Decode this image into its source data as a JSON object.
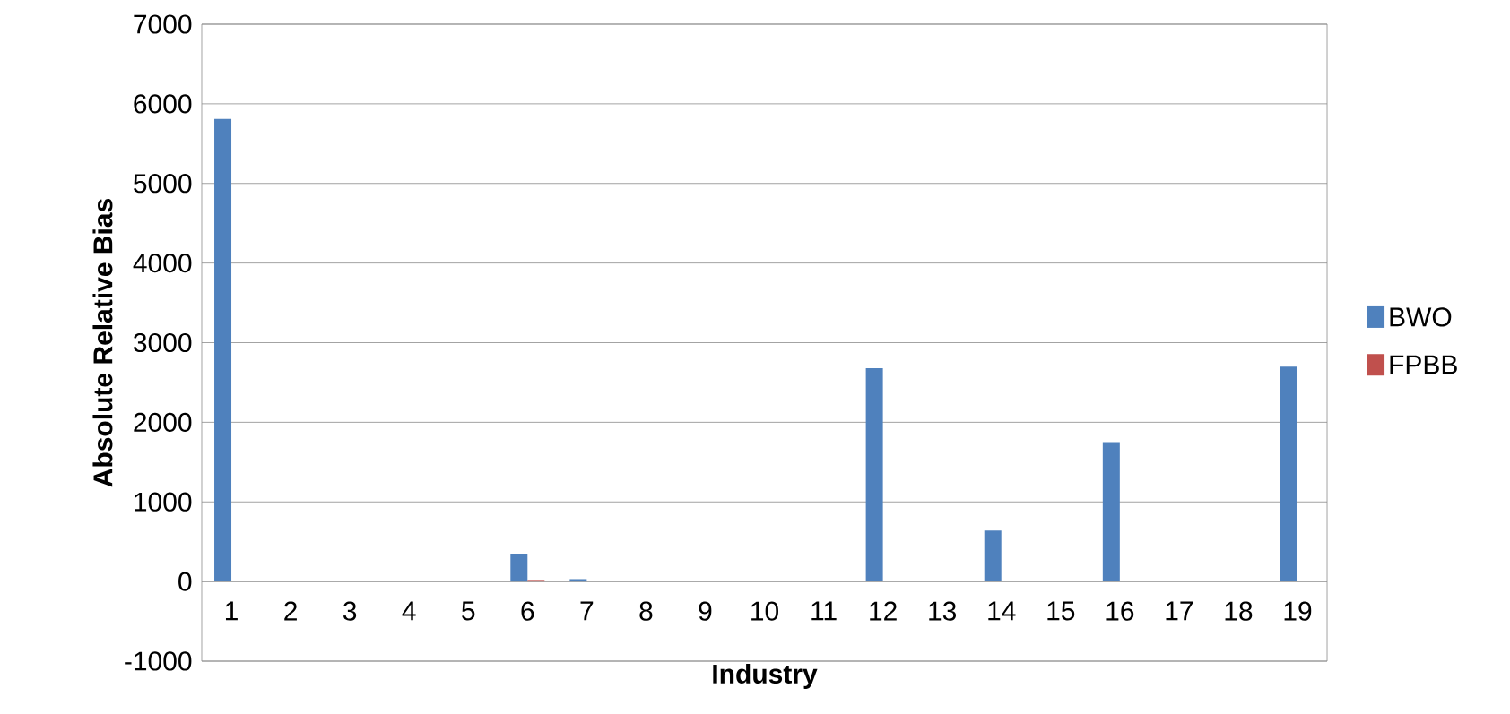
{
  "chart_data": {
    "type": "bar",
    "xlabel": "Industry",
    "ylabel": "Absolute Relative Bias",
    "categories": [
      "1",
      "2",
      "3",
      "4",
      "5",
      "6",
      "7",
      "8",
      "9",
      "10",
      "11",
      "12",
      "13",
      "14",
      "15",
      "16",
      "17",
      "18",
      "19"
    ],
    "series": [
      {
        "name": "BWO",
        "color": "#4f81bd",
        "values": [
          5810,
          0,
          0,
          0,
          0,
          350,
          30,
          0,
          0,
          0,
          0,
          2680,
          0,
          640,
          0,
          1750,
          0,
          0,
          2700
        ]
      },
      {
        "name": "FPBB",
        "color": "#c0504d",
        "values": [
          0,
          0,
          0,
          0,
          0,
          20,
          0,
          0,
          0,
          0,
          0,
          0,
          0,
          0,
          0,
          0,
          0,
          0,
          0
        ]
      }
    ],
    "ylim": [
      -1000,
      7000
    ],
    "yticks": [
      -1000,
      0,
      1000,
      2000,
      3000,
      4000,
      5000,
      6000,
      7000
    ],
    "grid": "y",
    "legend": "right"
  }
}
